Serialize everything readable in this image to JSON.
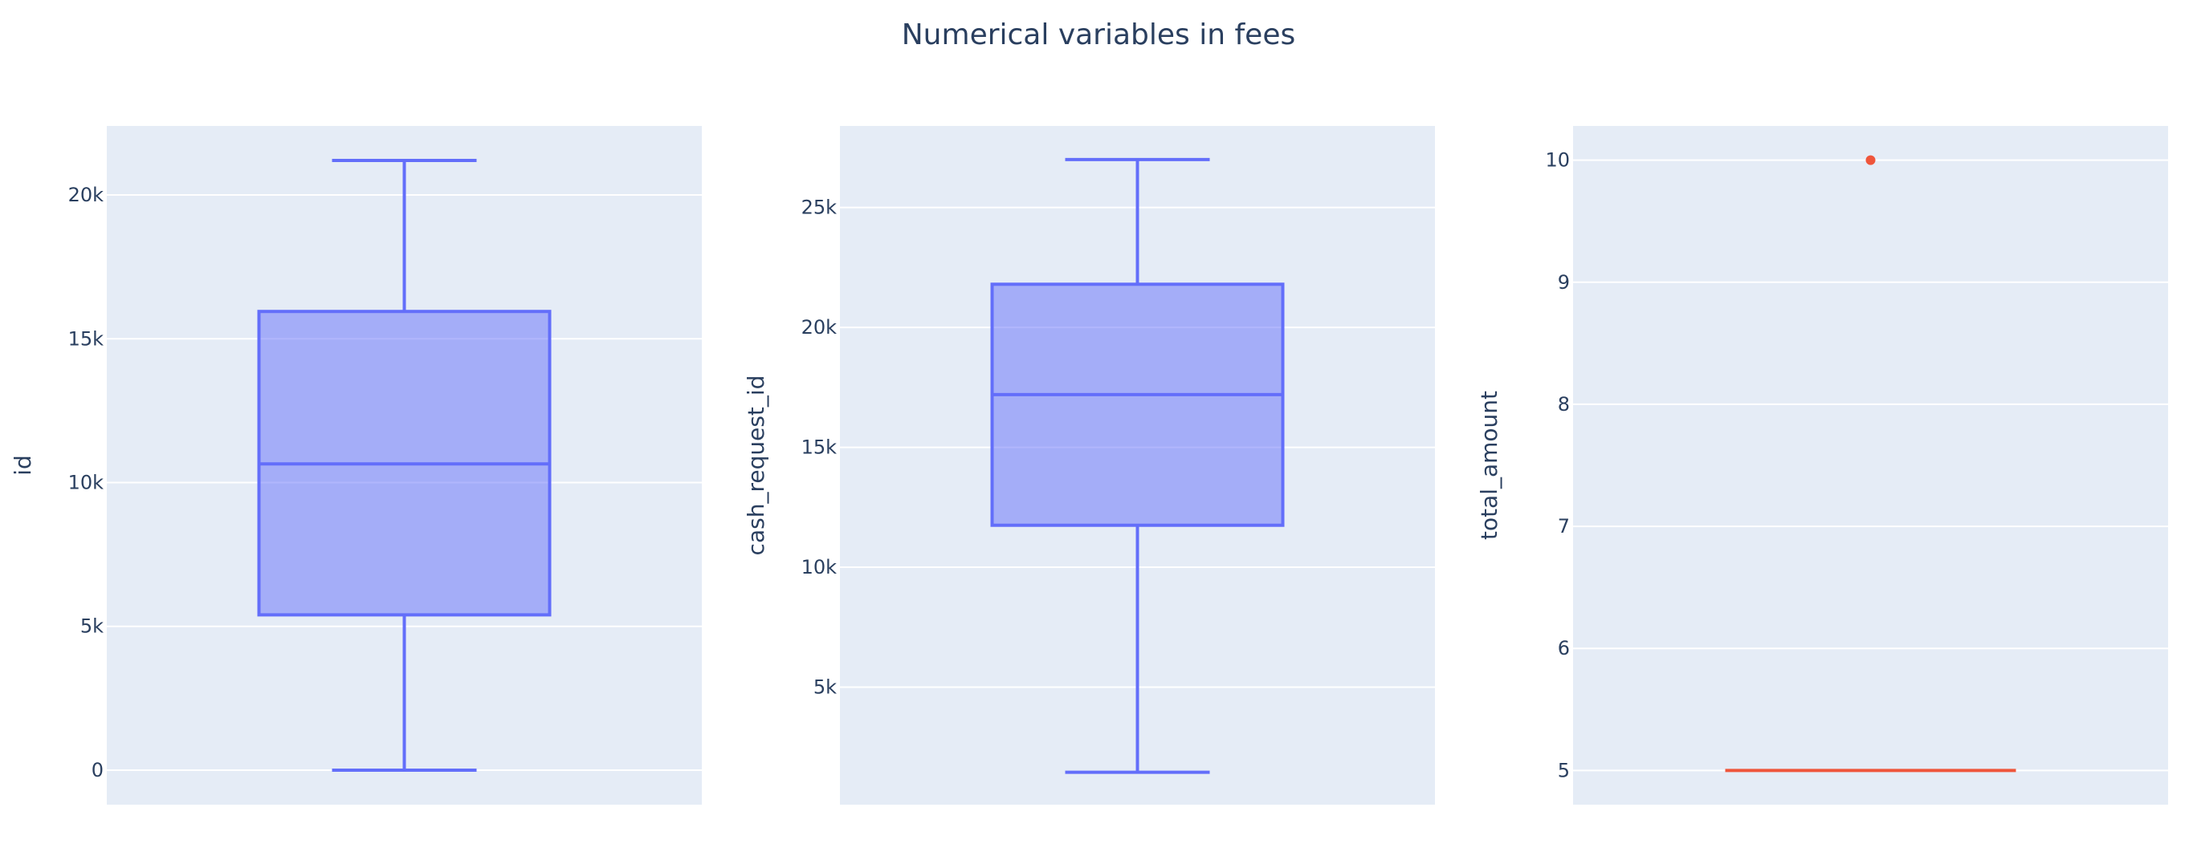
{
  "title": "Numerical variables in fees",
  "colors": {
    "page_background": "#ffffff",
    "plot_background": "#e5ecf6",
    "gridline": "#ffffff",
    "text": "#2a3f5f",
    "box_line": "#636efa",
    "box_fill": "rgba(99,110,250,0.5)",
    "secondary_trace": "#ef553b"
  },
  "chart_data": [
    {
      "type": "box",
      "ylabel": "id",
      "ylim": [
        -1200,
        22400
      ],
      "yticks": [
        0,
        5000,
        10000,
        15000,
        20000
      ],
      "yticklabels": [
        "0",
        "5k",
        "10k",
        "15k",
        "20k"
      ],
      "grid": true,
      "color": "#636efa",
      "stats": {
        "min": 0,
        "q1": 5400,
        "median": 10650,
        "q3": 15950,
        "max": 21200
      },
      "outliers": []
    },
    {
      "type": "box",
      "ylabel": "cash_request_id",
      "ylim": [
        100,
        28400
      ],
      "yticks": [
        5000,
        10000,
        15000,
        20000,
        25000
      ],
      "yticklabels": [
        "5k",
        "10k",
        "15k",
        "20k",
        "25k"
      ],
      "grid": true,
      "color": "#636efa",
      "stats": {
        "min": 1450,
        "q1": 11750,
        "median": 17200,
        "q3": 21800,
        "max": 27000
      },
      "outliers": []
    },
    {
      "type": "box",
      "ylabel": "total_amount",
      "ylim": [
        4.72,
        10.28
      ],
      "yticks": [
        5,
        6,
        7,
        8,
        9,
        10
      ],
      "yticklabels": [
        "5",
        "6",
        "7",
        "8",
        "9",
        "10"
      ],
      "grid": true,
      "color": "#ef553b",
      "stats": {
        "min": 5,
        "q1": 5,
        "median": 5,
        "q3": 5,
        "max": 5
      },
      "outliers": [
        10
      ]
    }
  ]
}
